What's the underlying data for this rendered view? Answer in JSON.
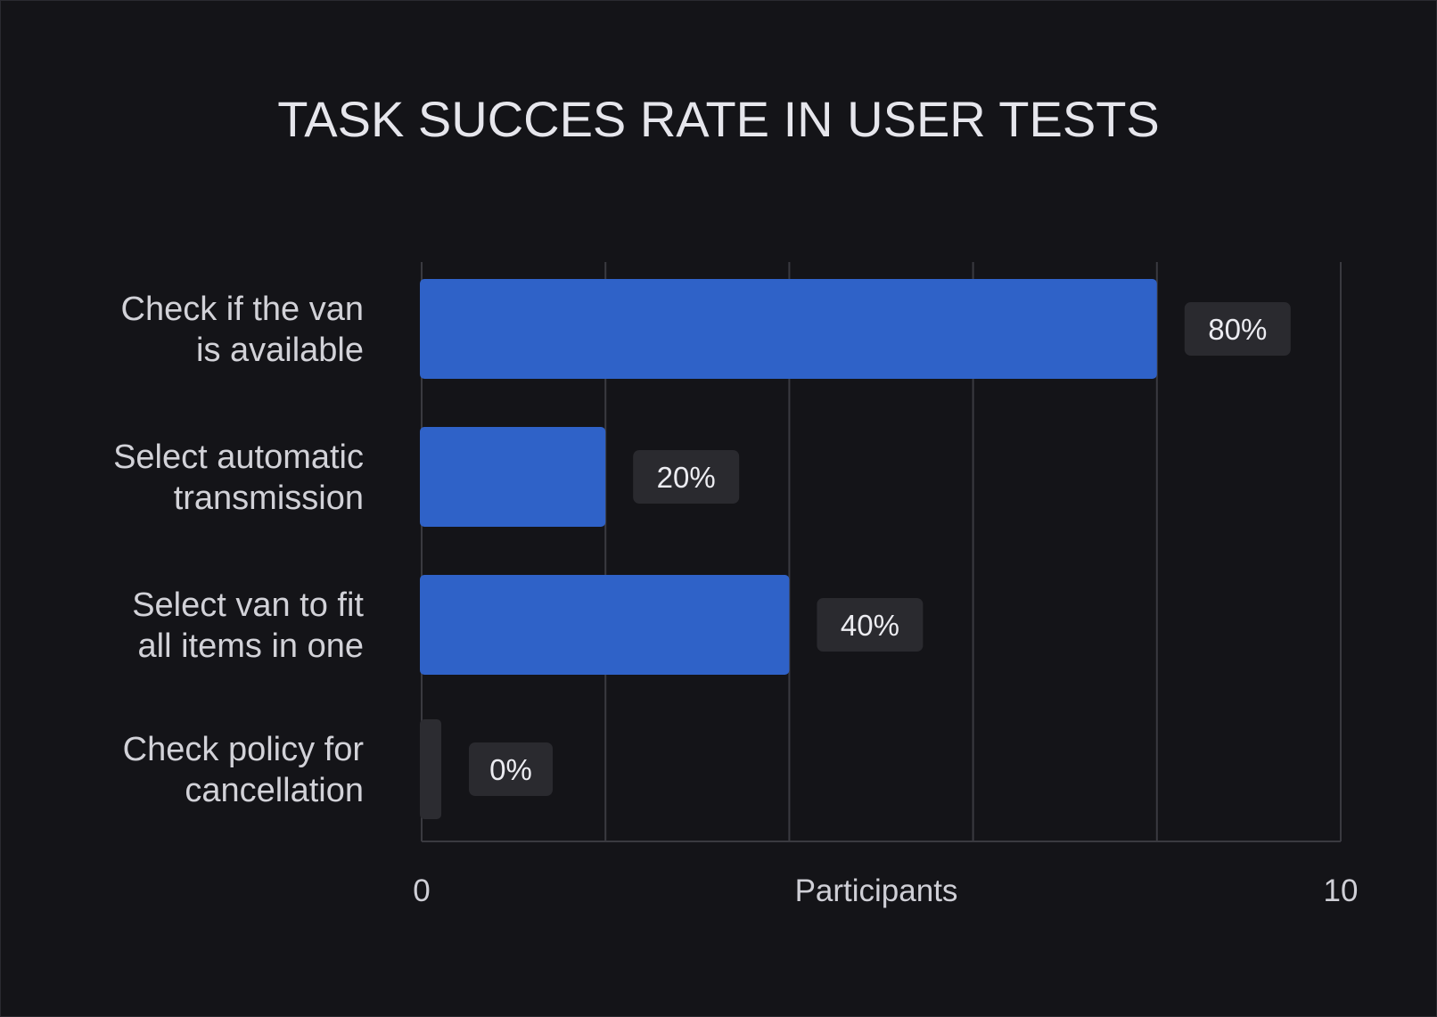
{
  "colors": {
    "background": "#141418",
    "bar": "#2f62c8",
    "zero_bar": "#2c2c31",
    "label_box": "#2a2a2f",
    "grid": "#3a3a40"
  },
  "chart_data": {
    "type": "bar",
    "orientation": "horizontal",
    "title": "TASK SUCCES RATE IN USER TESTS",
    "xlabel": "Participants",
    "ylabel": "",
    "xlim": [
      0,
      10
    ],
    "x_ticks": [
      "0",
      "10"
    ],
    "grid": true,
    "categories": [
      [
        "Check if the van",
        "is available"
      ],
      [
        "Select automatic",
        "transmission"
      ],
      [
        "Select van to fit",
        "all items in one"
      ],
      [
        "Check policy for",
        "cancellation"
      ]
    ],
    "values": [
      8,
      2,
      4,
      0
    ],
    "value_labels": [
      "80%",
      "20%",
      "40%",
      "0%"
    ]
  }
}
